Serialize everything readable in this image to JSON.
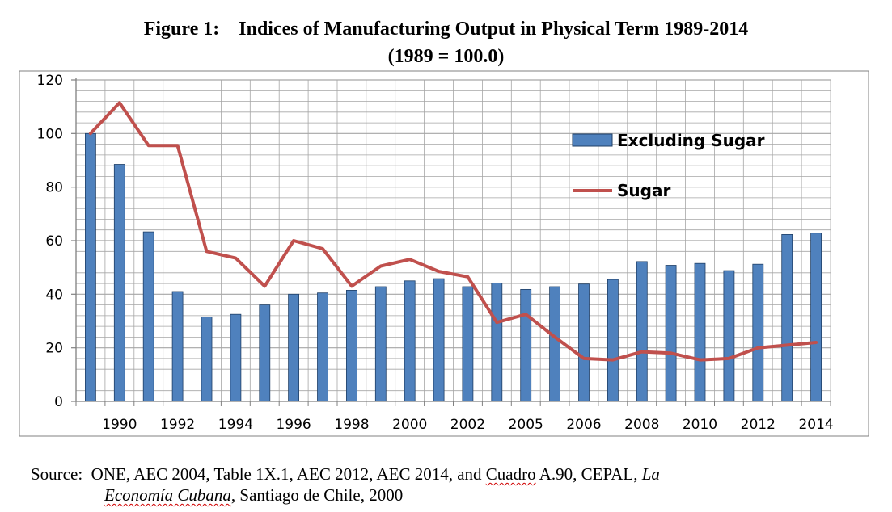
{
  "figure": {
    "number": "Figure 1:",
    "title": "Indices of Manufacturing Output in Physical Term 1989-2014",
    "subtitle": "(1989 = 100.0)"
  },
  "source": {
    "label": "Source:",
    "part1": "ONE, AEC 2004, Table 1X.1, AEC 2012, AEC 2014, and",
    "cuadro": "Cuadro",
    "part2": "A.90, CEPAL,",
    "italic_la": "La",
    "italic_econ": "Economía Cubana",
    "part3": ", Santiago de Chile, 2000"
  },
  "colors": {
    "bar_fill": "#4f81bd",
    "bar_stroke": "#1f3f66",
    "line": "#c0504d",
    "grid": "#a6a6a6",
    "axis": "#808080"
  },
  "chart_data": {
    "type": "bar",
    "ylim": [
      0,
      120
    ],
    "y_ticks": [
      "0",
      "20",
      "40",
      "60",
      "80",
      "100",
      "120"
    ],
    "categories": [
      "1989",
      "1990",
      "1991",
      "1992",
      "1993",
      "1994",
      "1995",
      "1996",
      "1997",
      "1998",
      "1999",
      "2000",
      "2001",
      "2002",
      "2003",
      "2005",
      "2005",
      "2006",
      "2007",
      "2008",
      "2009",
      "2010",
      "2011",
      "2012",
      "2013",
      "2014"
    ],
    "x_tick_labels": [
      "",
      "1990",
      "",
      "1992",
      "",
      "1994",
      "",
      "1996",
      "",
      "1998",
      "",
      "2000",
      "",
      "2002",
      "",
      "2005",
      "",
      "2006",
      "",
      "2008",
      "",
      "2010",
      "",
      "2012",
      "",
      "2014"
    ],
    "grid": true,
    "legend_position": "upper-right",
    "series": [
      {
        "name": "Excluding Sugar",
        "kind": "bar",
        "values": [
          100,
          88.5,
          63.3,
          41,
          31.5,
          32.5,
          36,
          40,
          40.5,
          41.5,
          42.8,
          45,
          45.8,
          42.8,
          44.2,
          41.8,
          42.8,
          43.8,
          45.5,
          52.2,
          50.8,
          51.5,
          48.8,
          51.2,
          62.3,
          62.8
        ]
      },
      {
        "name": "Sugar",
        "kind": "line",
        "values": [
          100,
          111.5,
          95.5,
          95.5,
          56,
          53.5,
          43,
          60,
          57,
          43,
          50.5,
          53,
          48.5,
          46.5,
          29.5,
          32.5,
          24,
          16,
          15.5,
          18.5,
          18,
          15.5,
          16,
          20,
          21,
          22
        ]
      }
    ]
  }
}
